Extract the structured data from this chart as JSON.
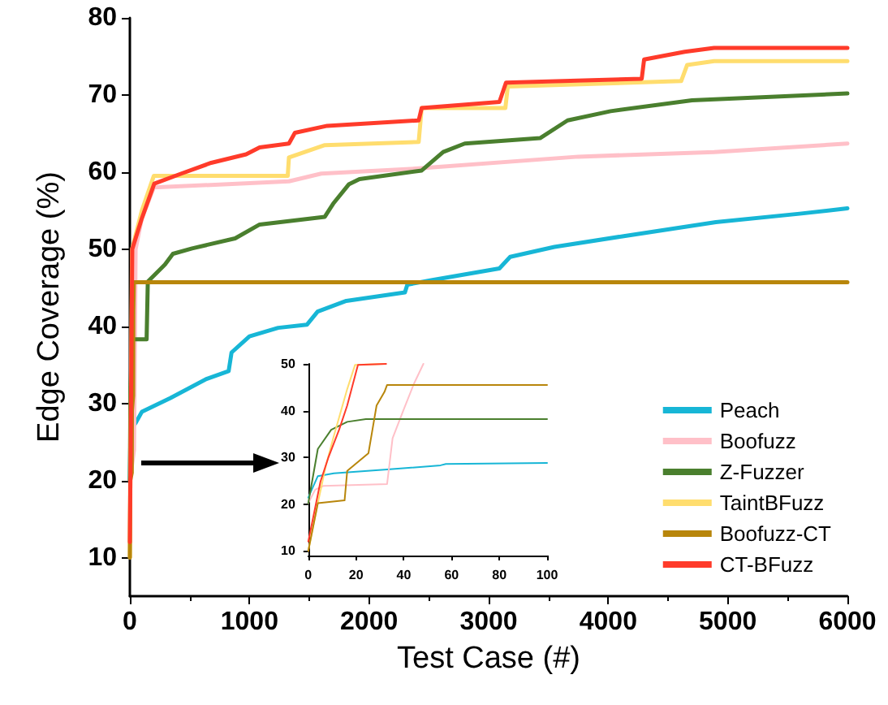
{
  "chart_data": [
    {
      "type": "line",
      "xlabel": "Test Case (#)",
      "ylabel": "Edge Coverage (%)",
      "xlim": [
        0,
        6000
      ],
      "ylim": [
        5,
        80
      ],
      "xticks": [
        0,
        1000,
        2000,
        3000,
        4000,
        5000,
        6000
      ],
      "yticks": [
        10,
        20,
        30,
        40,
        50,
        60,
        70,
        80
      ],
      "grid": false,
      "legend": "bottom right",
      "marker": "none",
      "line_style": "solid",
      "series": [
        {
          "name": "Peach",
          "color": "#17b6d6",
          "x": [
            0,
            5,
            50,
            100,
            340,
            645,
            826,
            850,
            1000,
            1240,
            1480,
            1570,
            1810,
            2300,
            2320,
            2530,
            3090,
            3180,
            3550,
            4130,
            4900,
            5600,
            6000
          ],
          "values": [
            20,
            26.5,
            27.5,
            28.9,
            30.7,
            33.2,
            34.2,
            36.6,
            38.7,
            39.8,
            40.2,
            41.9,
            43.3,
            44.4,
            45.4,
            46,
            47.5,
            49,
            50.3,
            51.7,
            53.5,
            54.6,
            55.3
          ]
        },
        {
          "name": "Boofuzz",
          "color": "#ffc0c8",
          "x": [
            0,
            35,
            48,
            100,
            200,
            1330,
            1600,
            2440,
            3750,
            4885,
            6000
          ],
          "values": [
            20,
            24,
            50,
            54,
            58,
            58.8,
            59.8,
            60.5,
            62,
            62.6,
            63.7
          ]
        },
        {
          "name": "Z-Fuzzer",
          "color": "#4a7f2e",
          "x": [
            0,
            5,
            20,
            140,
            150,
            293,
            360,
            520,
            880,
            1085,
            1630,
            1700,
            1830,
            1920,
            2440,
            2620,
            2800,
            3430,
            3660,
            4020,
            4700,
            6000
          ],
          "values": [
            20,
            32,
            38.3,
            38.3,
            45.8,
            48,
            49.4,
            50.1,
            51.4,
            53.2,
            54.2,
            55.9,
            58.4,
            59.1,
            60.2,
            62.6,
            63.7,
            64.4,
            66.7,
            67.9,
            69.3,
            70.2
          ]
        },
        {
          "name": "TaintBFuzz",
          "color": "#ffdd6e",
          "x": [
            0,
            18,
            100,
            200,
            1320,
            1330,
            1630,
            2415,
            2440,
            3140,
            3160,
            4610,
            4660,
            4885,
            6000
          ],
          "values": [
            10,
            50,
            55,
            59.5,
            59.5,
            61.9,
            63.5,
            63.9,
            68.3,
            68.3,
            71.1,
            71.8,
            73.9,
            74.4,
            74.4
          ]
        },
        {
          "name": "Boofuzz-CT",
          "color": "#b8860b",
          "x": [
            0,
            3,
            16,
            17,
            27,
            29,
            33,
            6000
          ],
          "values": [
            10,
            20,
            21,
            29,
            31,
            42,
            45.7,
            45.7
          ]
        },
        {
          "name": "CT-BFuzz",
          "color": "#ff3b2a",
          "x": [
            0,
            20,
            100,
            204,
            430,
            680,
            972,
            1085,
            1330,
            1380,
            1650,
            2415,
            2440,
            3090,
            3145,
            4280,
            4300,
            4640,
            4885,
            6000
          ],
          "values": [
            12,
            50,
            54,
            58.5,
            59.8,
            61.2,
            62.3,
            63.2,
            63.7,
            65.1,
            66,
            66.7,
            68.3,
            69.1,
            71.6,
            72.1,
            74.6,
            75.6,
            76.1,
            76.1
          ]
        }
      ]
    },
    {
      "type": "line",
      "xlim": [
        0,
        100
      ],
      "ylim": [
        9,
        50
      ],
      "xticks": [
        0,
        20,
        40,
        60,
        80,
        100
      ],
      "yticks": [
        10,
        20,
        30,
        40,
        50
      ],
      "grid": false,
      "legend": false,
      "marker": "none",
      "line_style": "solid",
      "series": [
        {
          "color": "#17b6d6",
          "x": [
            0,
            4,
            10.7,
            33,
            55.4,
            57.6,
            100
          ],
          "values": [
            21.4,
            26,
            26.6,
            27.4,
            28.3,
            28.6,
            28.8
          ]
        },
        {
          "color": "#ffc0c8",
          "x": [
            0,
            2.9,
            6.3,
            33,
            35.3,
            39.7,
            44.2,
            48.2
          ],
          "values": [
            20.2,
            23.1,
            23.9,
            24.3,
            34.1,
            39.9,
            45.7,
            50
          ]
        },
        {
          "color": "#4a7f2e",
          "x": [
            0,
            4,
            9.6,
            16.3,
            24.1,
            100
          ],
          "values": [
            20.2,
            31.8,
            35.9,
            37.6,
            38.2,
            38.2
          ]
        },
        {
          "color": "#ffdd6e",
          "x": [
            0,
            4,
            7.4,
            10.7,
            16.3,
            19.6,
            32
          ],
          "values": [
            10,
            20.2,
            28.3,
            34.6,
            44.6,
            49.8,
            50
          ]
        },
        {
          "color": "#b8860b",
          "x": [
            0,
            4,
            15.2,
            16.3,
            25.2,
            28.6,
            31.9,
            33,
            100
          ],
          "values": [
            10,
            20.2,
            20.8,
            27.1,
            30.9,
            41.1,
            44,
            45.5,
            45.5
          ]
        },
        {
          "color": "#ff3b2a",
          "x": [
            0,
            5.1,
            8.5,
            12.9,
            16.3,
            20.8,
            21,
            32.6
          ],
          "values": [
            12,
            24.8,
            30.1,
            35.9,
            41.1,
            49.8,
            50,
            50
          ]
        }
      ]
    }
  ]
}
